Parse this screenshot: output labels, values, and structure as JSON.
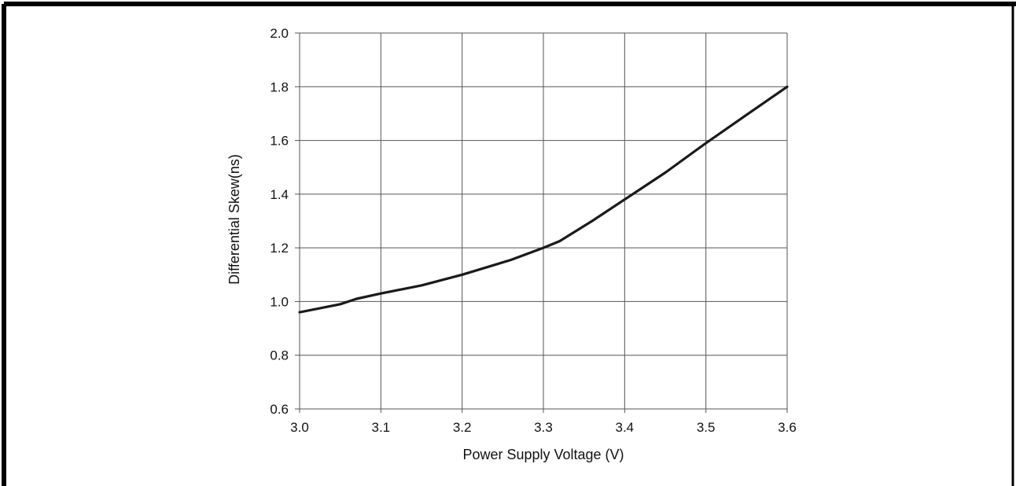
{
  "chart_data": {
    "type": "line",
    "title": "",
    "xlabel": "Power Supply Voltage (V)",
    "ylabel": "Differential Skew(ns)",
    "xlim": [
      3.0,
      3.6
    ],
    "ylim": [
      0.6,
      2.0
    ],
    "xticks": [
      "3.0",
      "3.1",
      "3.2",
      "3.3",
      "3.4",
      "3.5",
      "3.6"
    ],
    "yticks": [
      "0.6",
      "0.8",
      "1.0",
      "1.2",
      "1.4",
      "1.6",
      "1.8",
      "2.0"
    ],
    "grid": true,
    "legend": "none",
    "series": [
      {
        "color": "#1a1a1a",
        "x": [
          3.0,
          3.05,
          3.07,
          3.1,
          3.15,
          3.2,
          3.26,
          3.3,
          3.32,
          3.36,
          3.4,
          3.45,
          3.5,
          3.55,
          3.6
        ],
        "y": [
          0.96,
          0.99,
          1.01,
          1.03,
          1.06,
          1.1,
          1.155,
          1.2,
          1.225,
          1.3,
          1.38,
          1.48,
          1.59,
          1.695,
          1.8
        ]
      }
    ]
  }
}
